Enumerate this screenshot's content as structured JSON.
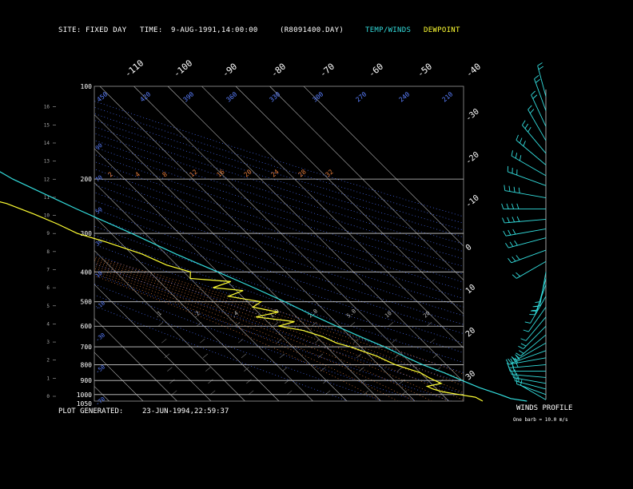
{
  "header": {
    "site_label": "SITE:",
    "site_value": "FIXED DAY",
    "time_label": "TIME:",
    "time_value": "9-AUG-1991,14:00:00",
    "file_id": "(R8091400.DAY)",
    "legend_temp": "TEMP/WINDS",
    "legend_dew": "DEWPOINT",
    "legend_temp_color": "#33dddd",
    "legend_dew_color": "#ffff33"
  },
  "footer": {
    "generated_label": "PLOT GENERATED:",
    "generated_value": "23-JUN-1994,22:59:37",
    "winds_title": "WINDS PROFILE",
    "barb_note": "One barb = 10.0 m/s"
  },
  "chart_data": {
    "type": "line",
    "pressure_ticks": [
      "100",
      "200",
      "300",
      "400",
      "500",
      "600",
      "700",
      "800",
      "900",
      "1000",
      "1050"
    ],
    "pressure_values": [
      100,
      200,
      300,
      400,
      500,
      600,
      700,
      800,
      900,
      1000,
      1050
    ],
    "height_ticks": [
      "16",
      "15",
      "14",
      "13",
      "12",
      "11",
      "10",
      "9",
      "8",
      "7",
      "6",
      "5",
      "4",
      "3",
      "2",
      "1",
      "0"
    ],
    "top_temp_labels": [
      "-110",
      "-100",
      "-90",
      "-80",
      "-70",
      "-60",
      "-50",
      "-40"
    ],
    "right_temp_labels": [
      "-30",
      "-20",
      "-10",
      "0",
      "10",
      "20",
      "30"
    ],
    "theta_labels": [
      "450",
      "420",
      "390",
      "360",
      "330",
      "300",
      "270",
      "240",
      "210"
    ],
    "mixing_labels": [
      "2",
      "4",
      "8",
      "12",
      "16",
      "20",
      "24",
      "28",
      "32"
    ],
    "mixing_small_labels": [
      ".1",
      ".2",
      ".4",
      "1.0",
      "2.0",
      "5.0",
      "10",
      "20"
    ],
    "blue_left_labels": [
      "90",
      "70",
      "50",
      "30",
      "10",
      "-10",
      "-30",
      "-50",
      "-70"
    ],
    "temperature": [
      [
        1050,
        33
      ],
      [
        1030,
        29
      ],
      [
        1000,
        27
      ],
      [
        950,
        23
      ],
      [
        900,
        20
      ],
      [
        850,
        17
      ],
      [
        800,
        13
      ],
      [
        750,
        10
      ],
      [
        700,
        7
      ],
      [
        650,
        3
      ],
      [
        600,
        -1
      ],
      [
        550,
        -5
      ],
      [
        500,
        -9
      ],
      [
        450,
        -14
      ],
      [
        400,
        -20
      ],
      [
        350,
        -27
      ],
      [
        300,
        -34
      ],
      [
        250,
        -43
      ],
      [
        200,
        -53
      ],
      [
        180,
        -56
      ],
      [
        160,
        -60
      ],
      [
        150,
        -62
      ],
      [
        140,
        -65
      ],
      [
        130,
        -68
      ],
      [
        120,
        -70
      ],
      [
        110,
        -68
      ],
      [
        100,
        -60
      ]
    ],
    "dewpoint": [
      [
        1050,
        20
      ],
      [
        1020,
        19
      ],
      [
        1000,
        15
      ],
      [
        980,
        11
      ],
      [
        960,
        9
      ],
      [
        940,
        8
      ],
      [
        920,
        13
      ],
      [
        900,
        12
      ],
      [
        880,
        11
      ],
      [
        850,
        10
      ],
      [
        800,
        5
      ],
      [
        750,
        2
      ],
      [
        700,
        -3
      ],
      [
        680,
        -6
      ],
      [
        650,
        -8
      ],
      [
        620,
        -12
      ],
      [
        600,
        -18
      ],
      [
        580,
        -12
      ],
      [
        560,
        -22
      ],
      [
        540,
        -14
      ],
      [
        520,
        -20
      ],
      [
        500,
        -16
      ],
      [
        480,
        -24
      ],
      [
        460,
        -18
      ],
      [
        450,
        -26
      ],
      [
        430,
        -19
      ],
      [
        420,
        -30
      ],
      [
        400,
        -28
      ],
      [
        380,
        -33
      ],
      [
        350,
        -37
      ],
      [
        320,
        -44
      ],
      [
        300,
        -50
      ],
      [
        280,
        -53
      ],
      [
        260,
        -57
      ],
      [
        240,
        -62
      ],
      [
        230,
        -67
      ],
      [
        220,
        -68
      ],
      [
        210,
        -66
      ],
      [
        200,
        -67
      ]
    ],
    "winds": [
      {
        "p": 1040,
        "dir": 300,
        "spd": 14
      },
      {
        "p": 1000,
        "dir": 290,
        "spd": 18
      },
      {
        "p": 960,
        "dir": 285,
        "spd": 20
      },
      {
        "p": 920,
        "dir": 280,
        "spd": 22
      },
      {
        "p": 880,
        "dir": 275,
        "spd": 25
      },
      {
        "p": 840,
        "dir": 270,
        "spd": 28
      },
      {
        "p": 800,
        "dir": 265,
        "spd": 30
      },
      {
        "p": 760,
        "dir": 260,
        "spd": 32
      },
      {
        "p": 720,
        "dir": 250,
        "spd": 30
      },
      {
        "p": 680,
        "dir": 240,
        "spd": 26
      },
      {
        "p": 640,
        "dir": 230,
        "spd": 22
      },
      {
        "p": 600,
        "dir": 225,
        "spd": 20
      },
      {
        "p": 560,
        "dir": 220,
        "spd": 18
      },
      {
        "p": 520,
        "dir": 215,
        "spd": 16
      },
      {
        "p": 480,
        "dir": 210,
        "spd": 18
      },
      {
        "p": 440,
        "dir": 200,
        "spd": 20
      },
      {
        "p": 420,
        "dir": 195,
        "spd": 22
      },
      {
        "p": 400,
        "dir": 190,
        "spd": 25
      },
      {
        "p": 370,
        "dir": 240,
        "spd": 24
      },
      {
        "p": 340,
        "dir": 250,
        "spd": 30
      },
      {
        "p": 310,
        "dir": 255,
        "spd": 34
      },
      {
        "p": 290,
        "dir": 260,
        "spd": 38
      },
      {
        "p": 270,
        "dir": 265,
        "spd": 40
      },
      {
        "p": 250,
        "dir": 270,
        "spd": 42
      },
      {
        "p": 230,
        "dir": 280,
        "spd": 40
      },
      {
        "p": 210,
        "dir": 290,
        "spd": 38
      },
      {
        "p": 195,
        "dir": 300,
        "spd": 36
      },
      {
        "p": 180,
        "dir": 310,
        "spd": 34
      },
      {
        "p": 165,
        "dir": 320,
        "spd": 30
      },
      {
        "p": 150,
        "dir": 330,
        "spd": 28
      },
      {
        "p": 135,
        "dir": 335,
        "spd": 26
      },
      {
        "p": 120,
        "dir": 340,
        "spd": 24
      },
      {
        "p": 108,
        "dir": 345,
        "spd": 20
      }
    ]
  }
}
